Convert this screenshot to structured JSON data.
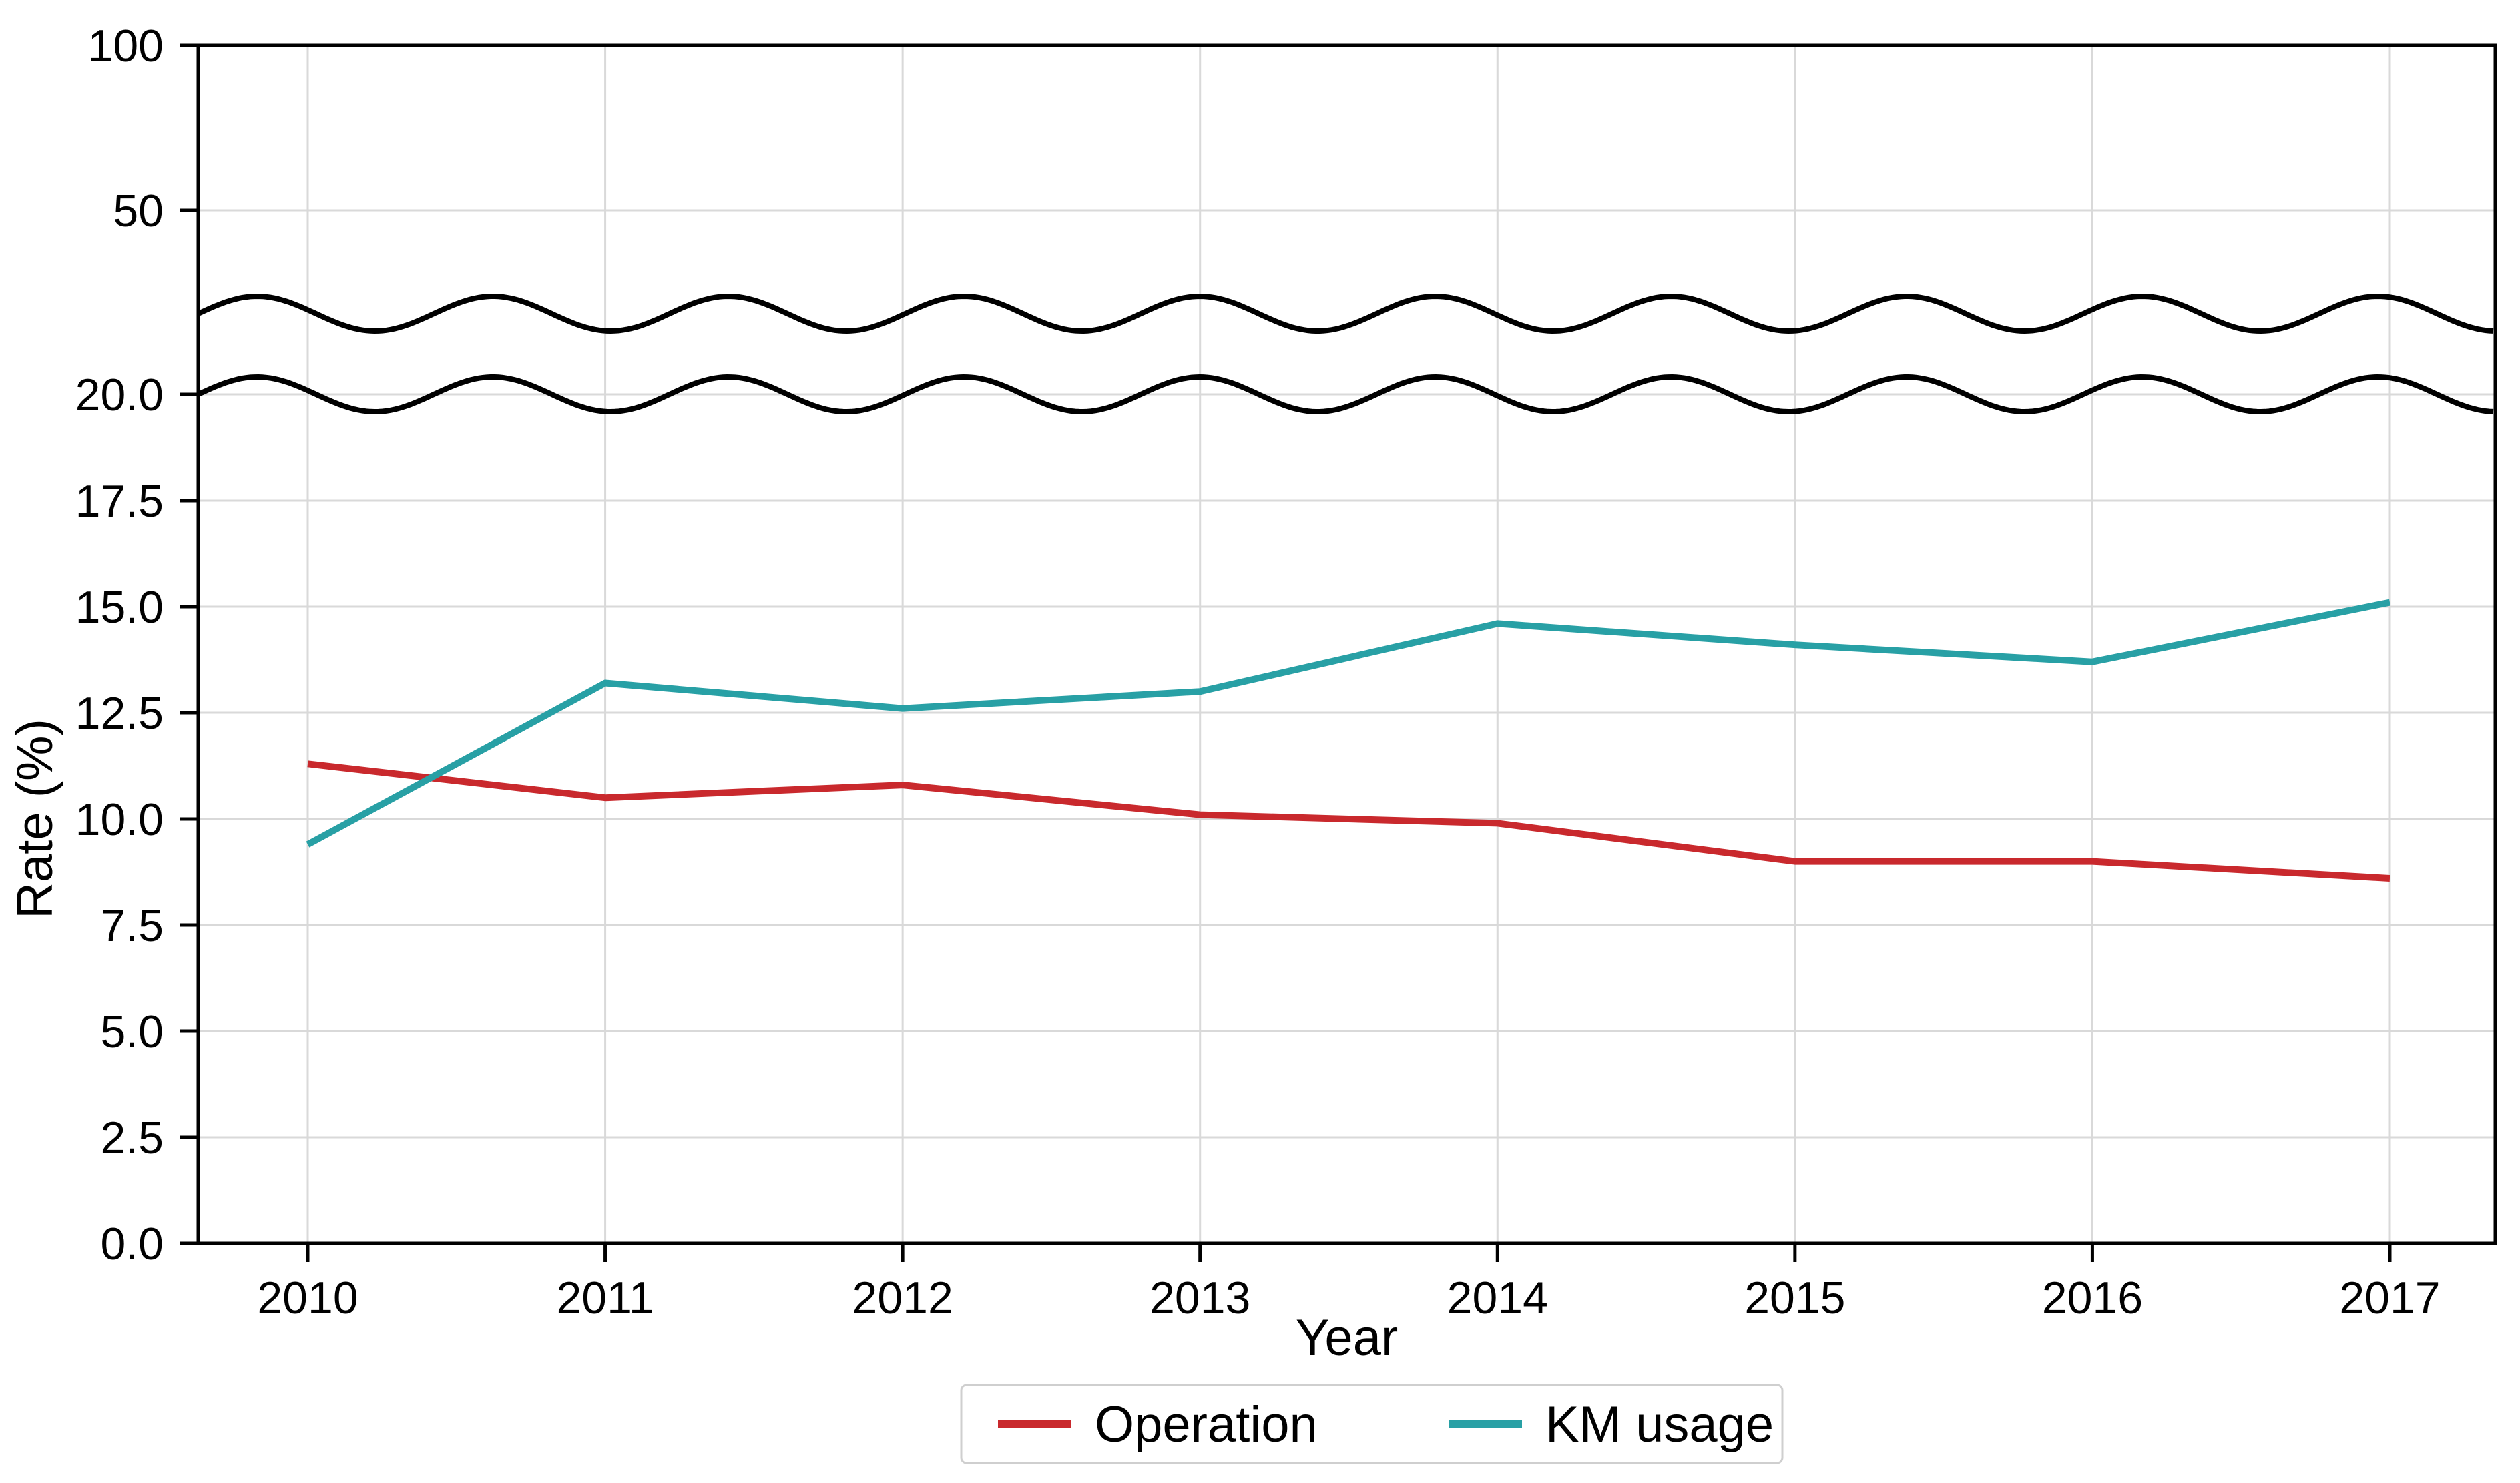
{
  "figure": {
    "background": "#ffffff",
    "description": "Line chart with a broken y-axis (wavy break between 20 and 50) comparing Operation rate and KM usage rate by year"
  },
  "chart_data": {
    "type": "line",
    "title": "",
    "xlabel": "Year",
    "ylabel": "Rate (%)",
    "categories": [
      "2010",
      "2011",
      "2012",
      "2013",
      "2014",
      "2015",
      "2016",
      "2017"
    ],
    "series": [
      {
        "name": "Operation",
        "color": "#c9292d",
        "values": [
          11.3,
          10.5,
          10.8,
          10.1,
          9.9,
          9.0,
          9.0,
          8.6
        ]
      },
      {
        "name": "KM usage",
        "color": "#28a0a5",
        "values": [
          9.4,
          13.2,
          12.6,
          13.0,
          14.6,
          14.1,
          13.7,
          15.1
        ]
      }
    ],
    "axis_break": {
      "style": "wave",
      "between": [
        20,
        50
      ]
    },
    "y_ticks_lower": [
      "20.0",
      "17.5",
      "15.0",
      "12.5",
      "10.0",
      "7.5",
      "5.0",
      "2.5",
      "0.0"
    ],
    "y_tick_values_lower": [
      20,
      17.5,
      15,
      12.5,
      10,
      7.5,
      5,
      2.5,
      0
    ],
    "y_ticks_upper": [
      "100",
      "50"
    ],
    "y_tick_values_upper": [
      100,
      50
    ],
    "ylim_lower": [
      0,
      20
    ],
    "grid": true,
    "grid_color": "#d9d9d9",
    "spine_color": "#000000",
    "text_color": "#000000",
    "legend": {
      "position": "bottom-center",
      "border_color": "#cfcfcf",
      "background": "#ffffff"
    }
  }
}
